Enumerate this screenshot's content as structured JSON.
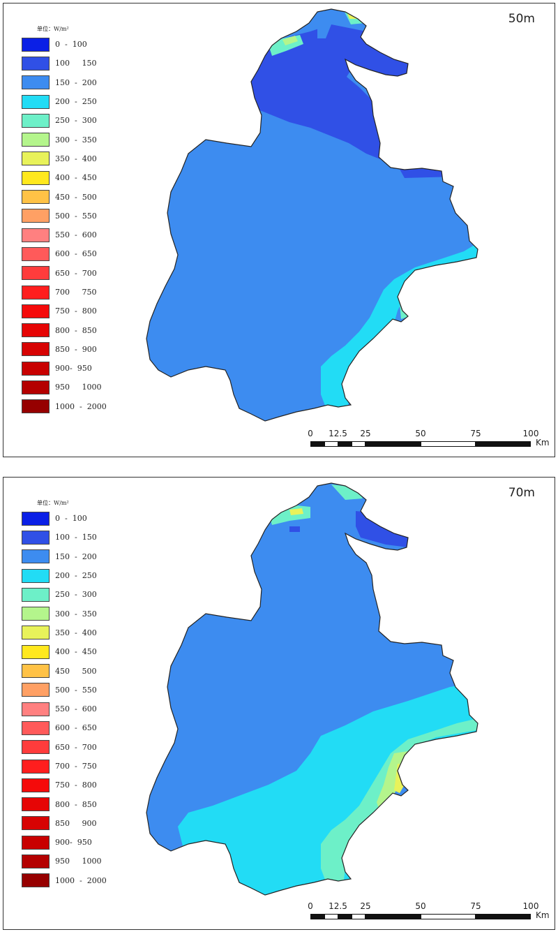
{
  "legend": {
    "unit": "单位：W/m²",
    "items": [
      {
        "label": "0  -  100",
        "color": "#0a1fe6"
      },
      {
        "label": "100     150",
        "color": "#3050e6"
      },
      {
        "label": "150  -  200",
        "color": "#3d8cf0"
      },
      {
        "label": "200  -  250",
        "color": "#22dcf5"
      },
      {
        "label": "250  -  300",
        "color": "#6df0c8"
      },
      {
        "label": "300  -  350",
        "color": "#b4f58c"
      },
      {
        "label": "350  -  400",
        "color": "#e8f25a"
      },
      {
        "label": "400  -  450",
        "color": "#ffe81e"
      },
      {
        "label": "450  -  500",
        "color": "#ffc246"
      },
      {
        "label": "500  -  550",
        "color": "#ffa064"
      },
      {
        "label": "550  -  600",
        "color": "#ff8080"
      },
      {
        "label": "600  -  650",
        "color": "#ff5a5a"
      },
      {
        "label": "650  -  700",
        "color": "#ff3c3c"
      },
      {
        "label": "700     750",
        "color": "#ff1e1e"
      },
      {
        "label": "750  -  800",
        "color": "#f50a0a"
      },
      {
        "label": "800  -  850",
        "color": "#e60505"
      },
      {
        "label": "850  -  900",
        "color": "#d70303"
      },
      {
        "label": "900-  950",
        "color": "#c80000"
      },
      {
        "label": "950     1000",
        "color": "#b40000"
      },
      {
        "label": "1000  -  2000",
        "color": "#960000"
      }
    ]
  },
  "maps": [
    {
      "title": "50m",
      "legend_labels": [
        "0  -  100",
        "100     150",
        "150  -  200",
        "200  -  250",
        "250  -  300",
        "300  -  350",
        "350  -  400",
        "400  -  450",
        "450  -  500",
        "500  -  550",
        "550  -  600",
        "600  -  650",
        "650  -  700",
        "700     750",
        "750  -  800",
        "800  -  850",
        "850  -  900",
        "900-  950",
        "950     1000",
        "1000  -  2000"
      ]
    },
    {
      "title": "70m",
      "legend_labels": [
        "0  -  100",
        "100  -  150",
        "150  -  200",
        "200  -  250",
        "250  -  300",
        "300  -  350",
        "350  -  400",
        "400  -  450",
        "450     500",
        "500  -  550",
        "550  -  600",
        "600  -  650",
        "650  -  700",
        "700  -  750",
        "750  -  800",
        "800  -  850",
        "850     900",
        "900-  950",
        "950     1000",
        "1000  -  2000"
      ]
    }
  ],
  "scalebar": {
    "ticks": [
      "0",
      "12.5",
      "25",
      "50",
      "75",
      "100"
    ],
    "tick_values": [
      0,
      12.5,
      25,
      50,
      75,
      100
    ],
    "unit": "Km"
  },
  "colors": {
    "dark_blue": "#3050e6",
    "mid_blue": "#3d8cf0",
    "cyan": "#22dcf5",
    "aqua": "#6df0c8",
    "light_green": "#b4f58c",
    "yellow_green": "#e8f25a",
    "outline": "#222222"
  }
}
